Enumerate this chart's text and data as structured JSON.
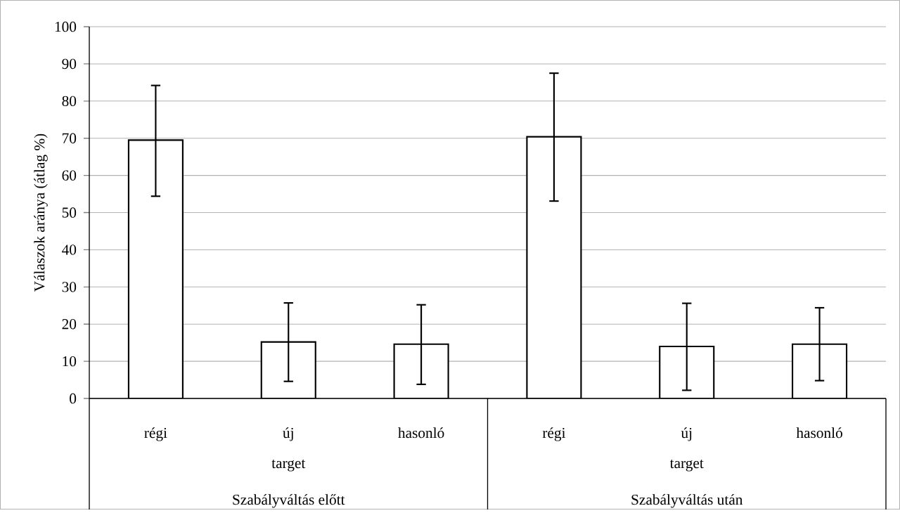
{
  "chart_data": {
    "type": "bar",
    "ylabel": "Válaszok aránya (átlag %)",
    "categories": [
      "régi",
      "új",
      "hasonló",
      "régi",
      "új",
      "hasonló"
    ],
    "values": [
      69.5,
      15.2,
      14.6,
      70.4,
      14.0,
      14.6
    ],
    "errors": [
      [
        54.4,
        84.2
      ],
      [
        4.6,
        25.7
      ],
      [
        3.8,
        25.2
      ],
      [
        53.1,
        87.5
      ],
      [
        2.2,
        25.6
      ],
      [
        4.8,
        24.4
      ]
    ],
    "color": "#ffffff",
    "ylim": [
      0,
      100
    ],
    "yticks": [
      0,
      10,
      20,
      30,
      40,
      50,
      60,
      70,
      80,
      90,
      100
    ],
    "grid": "y",
    "annotations": [
      "target",
      "target",
      "Szabályváltás előtt",
      "Szabályváltás után"
    ]
  }
}
